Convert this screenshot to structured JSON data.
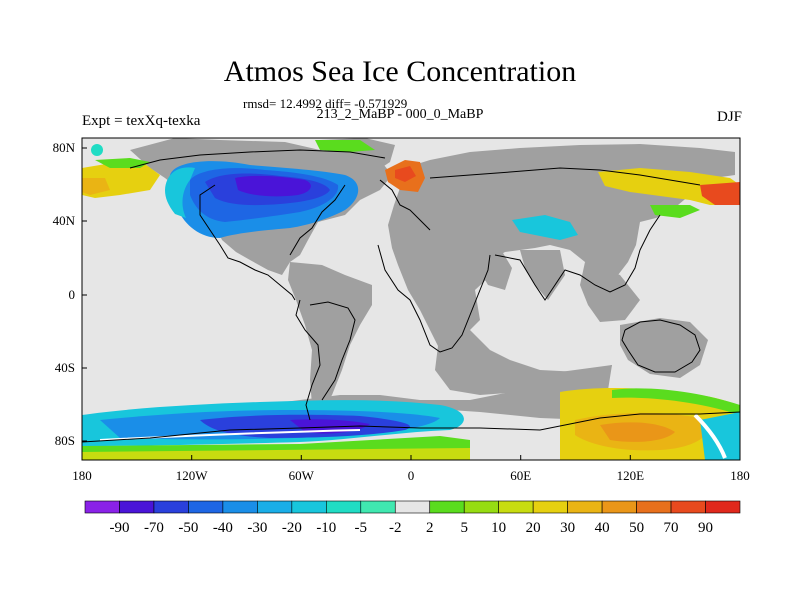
{
  "title": "Atmos Sea Ice Concentration",
  "stats": "rmsd= 12.4992 diff= -0.571929",
  "subtitle": "213_2_MaBP - 000_0_MaBP",
  "experiment": "Expt = texXq-texka",
  "season": "DJF",
  "x_ticks": [
    "180",
    "120W",
    "60W",
    "0",
    "60E",
    "120E",
    "180"
  ],
  "y_ticks": [
    "80N",
    "40N",
    "0",
    "40S",
    "80S"
  ],
  "colorbar": {
    "labels": [
      "-90",
      "-70",
      "-50",
      "-40",
      "-30",
      "-20",
      "-10",
      "-5",
      "-2",
      "2",
      "5",
      "10",
      "20",
      "30",
      "40",
      "50",
      "70",
      "90"
    ],
    "colors": [
      "#8a22e8",
      "#4a14d8",
      "#2a40dc",
      "#1e66e4",
      "#1a8ee8",
      "#1aaee8",
      "#18c6dc",
      "#20dcc4",
      "#40e8b0",
      "#e6e6e6",
      "#5adc1e",
      "#96dc12",
      "#c8dc10",
      "#e6d010",
      "#eab414",
      "#ea9618",
      "#e8701c",
      "#e84a1e",
      "#e0281c"
    ]
  },
  "palette": {
    "land": "#a0a0a0",
    "ocean_no_change": "#e6e6e6"
  }
}
